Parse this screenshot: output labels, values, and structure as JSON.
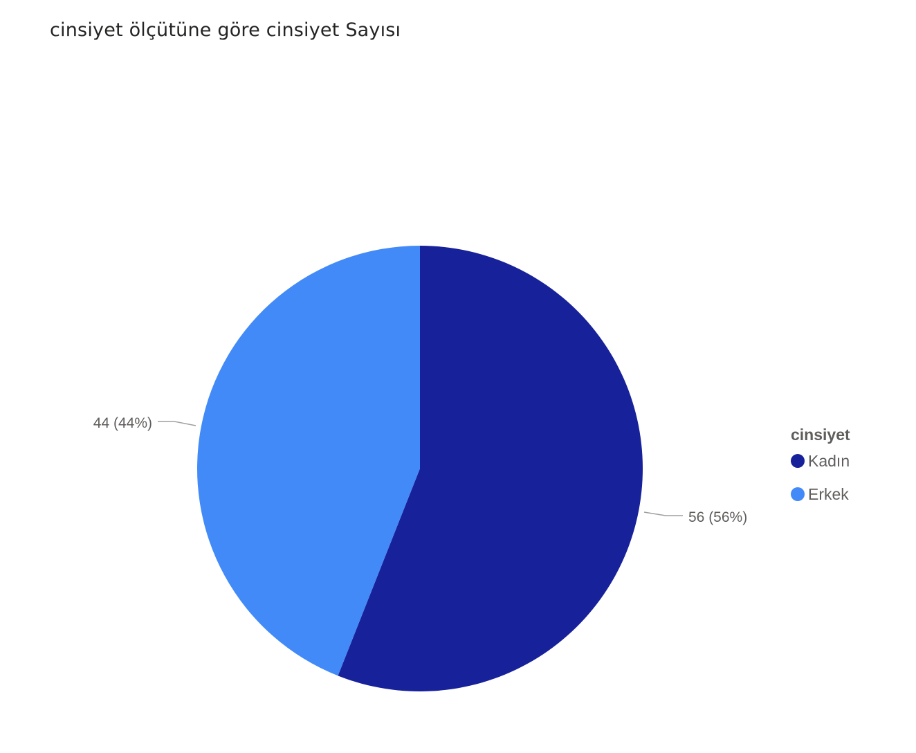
{
  "chart_data": {
    "type": "pie",
    "title": "cinsiyet ölçütüne göre cinsiyet Sayısı",
    "legend_title": "cinsiyet",
    "legend_position": "right",
    "slices": [
      {
        "label": "Kadın",
        "value": 56,
        "percent": 56,
        "data_label": "56 (56%)",
        "color": "#17219a"
      },
      {
        "label": "Erkek",
        "value": 44,
        "percent": 44,
        "data_label": "44 (44%)",
        "color": "#428af7"
      }
    ]
  }
}
